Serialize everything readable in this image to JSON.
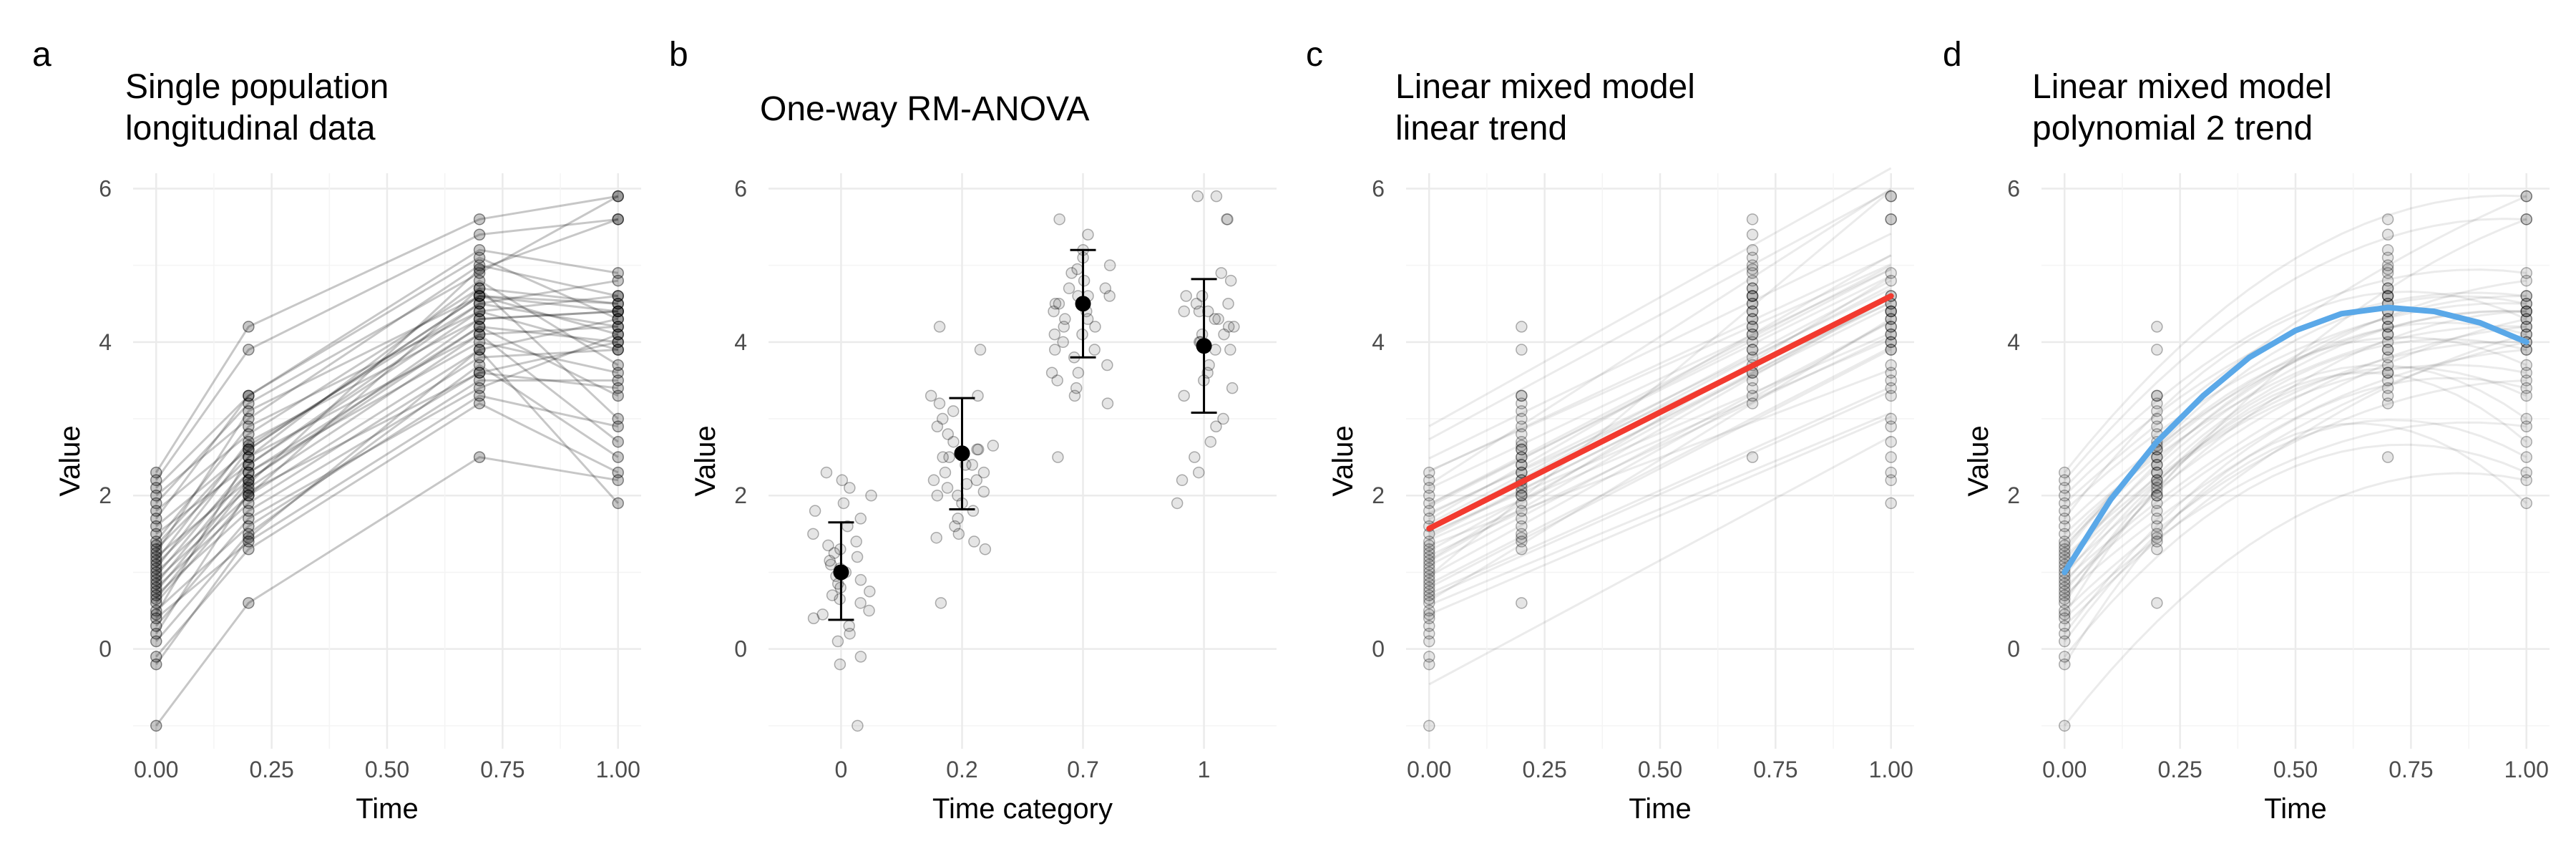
{
  "chart_data": [
    {
      "letter": "a",
      "title": [
        "Single population",
        "longitudinal data"
      ],
      "type": "line",
      "xlabel": "Time",
      "ylabel": "Value",
      "x_ticks": [
        0,
        0.25,
        0.5,
        0.75,
        1
      ],
      "x_tick_labels": [
        "0.00",
        "0.25",
        "0.50",
        "0.75",
        "1.00"
      ],
      "y_ticks": [
        0,
        2,
        4,
        6
      ],
      "y_tick_labels": [
        "0",
        "2",
        "4",
        "6"
      ],
      "xlim": [
        -0.05,
        1.05
      ],
      "ylim": [
        -1.3,
        6.2
      ],
      "time_points": [
        0,
        0.2,
        0.7,
        1.0
      ],
      "series": [
        {
          "values": [
            2.3,
            4.2,
            5.6,
            5.9
          ]
        },
        {
          "values": [
            2.2,
            3.9,
            5.4,
            5.6
          ]
        },
        {
          "values": [
            2.1,
            3.3,
            5.2,
            4.9
          ]
        },
        {
          "values": [
            2.0,
            3.0,
            5.0,
            4.6
          ]
        },
        {
          "values": [
            1.9,
            3.2,
            4.9,
            5.9
          ]
        },
        {
          "values": [
            1.8,
            2.8,
            4.7,
            4.5
          ]
        },
        {
          "values": [
            1.7,
            3.3,
            5.1,
            4.3
          ]
        },
        {
          "values": [
            1.6,
            2.6,
            4.6,
            4.4
          ]
        },
        {
          "values": [
            1.5,
            2.4,
            4.5,
            4.2
          ]
        },
        {
          "values": [
            1.4,
            2.9,
            4.4,
            4.6
          ]
        },
        {
          "values": [
            1.3,
            2.5,
            4.8,
            3.7
          ]
        },
        {
          "values": [
            1.2,
            2.2,
            4.2,
            4.0
          ]
        },
        {
          "values": [
            1.15,
            2.7,
            4.3,
            4.4
          ]
        },
        {
          "values": [
            1.1,
            2.3,
            4.0,
            3.6
          ]
        },
        {
          "values": [
            1.05,
            2.6,
            4.6,
            4.1
          ]
        },
        {
          "values": [
            1.0,
            2.1,
            4.1,
            4.2
          ]
        },
        {
          "values": [
            0.95,
            2.4,
            4.4,
            3.9
          ]
        },
        {
          "values": [
            0.9,
            2.0,
            3.9,
            4.3
          ]
        },
        {
          "values": [
            0.85,
            2.3,
            4.2,
            3.3
          ]
        },
        {
          "values": [
            0.8,
            1.9,
            3.8,
            3.9
          ]
        },
        {
          "values": [
            0.75,
            2.2,
            4.3,
            4.4
          ]
        },
        {
          "values": [
            0.7,
            1.8,
            3.6,
            4.0
          ]
        },
        {
          "values": [
            0.6,
            2.0,
            4.7,
            3.0
          ]
        },
        {
          "values": [
            0.5,
            1.6,
            3.5,
            3.5
          ]
        },
        {
          "values": [
            0.45,
            2.5,
            4.1,
            2.7
          ]
        },
        {
          "values": [
            0.4,
            1.4,
            3.3,
            2.9
          ]
        },
        {
          "values": [
            0.3,
            1.7,
            3.4,
            4.1
          ]
        },
        {
          "values": [
            0.1,
            1.5,
            3.7,
            2.5
          ]
        },
        {
          "values": [
            -0.1,
            1.3,
            3.2,
            2.3
          ]
        },
        {
          "values": [
            -0.2,
            1.45,
            3.9,
            1.9
          ]
        },
        {
          "values": [
            1.25,
            3.1,
            4.6,
            4.5
          ]
        },
        {
          "values": [
            1.35,
            2.65,
            4.5,
            4.8
          ]
        },
        {
          "values": [
            0.65,
            2.15,
            4.95,
            5.6
          ]
        },
        {
          "values": [
            0.2,
            2.05,
            3.6,
            3.4
          ]
        },
        {
          "values": [
            -1.0,
            0.6,
            2.5,
            2.2
          ]
        }
      ]
    },
    {
      "letter": "b",
      "title": [
        "One-way RM-ANOVA"
      ],
      "type": "scatter",
      "xlabel": "Time category",
      "ylabel": "Value",
      "categories": [
        "0",
        "0.2",
        "0.7",
        "1"
      ],
      "y_ticks": [
        0,
        2,
        4,
        6
      ],
      "y_tick_labels": [
        "0",
        "2",
        "4",
        "6"
      ],
      "ylim": [
        -1.3,
        6.2
      ],
      "means": [
        1.0,
        2.55,
        4.5,
        3.95
      ],
      "error_low": [
        0.38,
        1.82,
        3.8,
        3.08
      ],
      "error_high": [
        1.65,
        3.27,
        5.2,
        4.82
      ]
    },
    {
      "letter": "c",
      "title": [
        "Linear mixed model",
        "linear trend"
      ],
      "type": "line",
      "xlabel": "Time",
      "ylabel": "Value",
      "x_ticks": [
        0,
        0.25,
        0.5,
        0.75,
        1
      ],
      "x_tick_labels": [
        "0.00",
        "0.25",
        "0.50",
        "0.75",
        "1.00"
      ],
      "y_ticks": [
        0,
        2,
        4,
        6
      ],
      "y_tick_labels": [
        "0",
        "2",
        "4",
        "6"
      ],
      "xlim": [
        -0.05,
        1.05
      ],
      "ylim": [
        -1.3,
        6.2
      ],
      "fit_color": "#f23a2f",
      "fit": {
        "x": [
          0,
          1
        ],
        "y": [
          1.57,
          4.6
        ]
      }
    },
    {
      "letter": "d",
      "title": [
        "Linear mixed model",
        "polynomial 2 trend"
      ],
      "type": "line",
      "xlabel": "Time",
      "ylabel": "Value",
      "x_ticks": [
        0,
        0.25,
        0.5,
        0.75,
        1
      ],
      "x_tick_labels": [
        "0.00",
        "0.25",
        "0.50",
        "0.75",
        "1.00"
      ],
      "y_ticks": [
        0,
        2,
        4,
        6
      ],
      "y_tick_labels": [
        "0",
        "2",
        "4",
        "6"
      ],
      "xlim": [
        -0.05,
        1.05
      ],
      "ylim": [
        -1.3,
        6.2
      ],
      "fit_color": "#5aa8e8",
      "fit": {
        "x": [
          0,
          0.1,
          0.2,
          0.3,
          0.4,
          0.5,
          0.6,
          0.7,
          0.8,
          0.9,
          1.0
        ],
        "y": [
          1.0,
          1.95,
          2.7,
          3.3,
          3.8,
          4.15,
          4.37,
          4.45,
          4.4,
          4.25,
          4.0
        ]
      }
    }
  ]
}
